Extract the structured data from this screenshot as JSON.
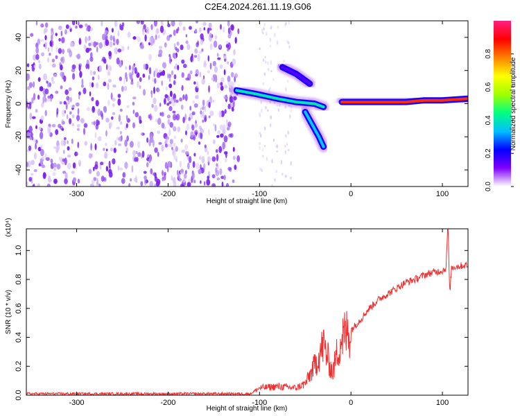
{
  "title": "C2E4.2024.261.11.19.G06",
  "colorbar": {
    "label": "Normalized spectral amplitude",
    "ticks": [
      "0.0",
      "0.2",
      "0.4",
      "0.6",
      "0.8"
    ],
    "tick_values": [
      0.0,
      0.2,
      0.4,
      0.6,
      0.8
    ],
    "range": [
      0,
      1
    ],
    "stops": [
      "#ffffff",
      "#8000ff",
      "#0000ff",
      "#00c0ff",
      "#00ff80",
      "#a0ff00",
      "#ffff00",
      "#ff8000",
      "#ff0000",
      "#ff2080"
    ]
  },
  "chart_data": [
    {
      "type": "heatmap",
      "title": "C2E4.2024.261.11.19.G06",
      "xlabel": "Height of straight line (km)",
      "ylabel": "Frequency (Hz)",
      "xlim": [
        -355,
        128
      ],
      "ylim": [
        -50,
        50
      ],
      "xticks": [
        -300,
        -200,
        -100,
        0,
        100
      ],
      "xtick_labels": [
        "-300",
        "-200",
        "-100",
        "0",
        "100"
      ],
      "yticks": [
        -40,
        -20,
        0,
        20,
        40
      ],
      "ytick_labels": [
        "-40",
        "-20",
        "0",
        "20",
        "40"
      ],
      "ridge_segments": [
        {
          "x": [
            -125,
            -105,
            -80,
            -60,
            -40,
            -30
          ],
          "y": [
            8,
            6,
            3,
            1,
            0,
            -2
          ],
          "amplitude": 0.4
        },
        {
          "x": [
            -50,
            -45,
            -40,
            -35,
            -30
          ],
          "y": [
            -5,
            -10,
            -15,
            -20,
            -26
          ],
          "amplitude": 0.35
        },
        {
          "x": [
            -75,
            -60,
            -45
          ],
          "y": [
            22,
            18,
            12
          ],
          "amplitude": 0.15
        },
        {
          "x": [
            -10,
            0,
            20,
            40,
            60,
            80,
            100,
            128
          ],
          "y": [
            1,
            1,
            1,
            1,
            1,
            2,
            2,
            3
          ],
          "amplitude": 0.85
        }
      ]
    },
    {
      "type": "line",
      "xlabel": "Height of straight line (km)",
      "ylabel": "SNR (10 * v/v)",
      "scale_label": "(x10⁴)",
      "xlim": [
        -355,
        128
      ],
      "ylim": [
        0,
        1.15
      ],
      "xticks": [
        -300,
        -200,
        -100,
        0,
        100
      ],
      "xtick_labels": [
        "-300",
        "-200",
        "-100",
        "0",
        "100"
      ],
      "yticks": [
        0.0,
        0.2,
        0.4,
        0.6,
        0.8,
        1.0
      ],
      "ytick_labels": [
        "0.0",
        "0.2",
        "0.4",
        "0.6",
        "0.8",
        "1.0"
      ],
      "series": [
        {
          "name": "SNR",
          "color": "#f03030",
          "x": [
            -355,
            -300,
            -200,
            -110,
            -100,
            -80,
            -60,
            -50,
            -40,
            -30,
            -25,
            -20,
            -15,
            -10,
            0,
            10,
            20,
            30,
            40,
            50,
            60,
            70,
            80,
            90,
            100,
            104,
            106,
            108,
            110,
            115,
            128
          ],
          "y": [
            0.01,
            0.01,
            0.01,
            0.01,
            0.05,
            0.06,
            0.05,
            0.08,
            0.2,
            0.35,
            0.25,
            0.15,
            0.3,
            0.4,
            0.45,
            0.52,
            0.6,
            0.66,
            0.7,
            0.74,
            0.78,
            0.8,
            0.83,
            0.85,
            0.86,
            0.88,
            1.2,
            0.7,
            0.88,
            0.89,
            0.9
          ]
        }
      ]
    }
  ]
}
